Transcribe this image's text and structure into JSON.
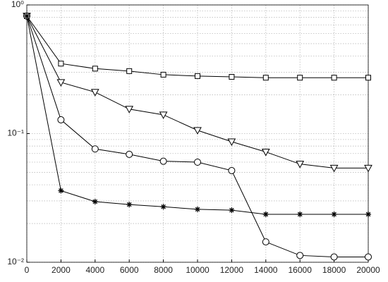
{
  "chart_data": {
    "type": "line",
    "x": [
      0,
      2000,
      4000,
      6000,
      8000,
      10000,
      12000,
      14000,
      16000,
      18000,
      20000
    ],
    "series": [
      {
        "marker": "square",
        "color": "#000000",
        "values": [
          0.82,
          0.35,
          0.32,
          0.306,
          0.287,
          0.28,
          0.276,
          0.272,
          0.272,
          0.272,
          0.272
        ]
      },
      {
        "marker": "triangle",
        "color": "#000000",
        "values": [
          0.82,
          0.25,
          0.21,
          0.155,
          0.14,
          0.106,
          0.0865,
          0.072,
          0.058,
          0.054,
          0.054
        ]
      },
      {
        "marker": "circle",
        "color": "#000000",
        "values": [
          0.82,
          0.128,
          0.076,
          0.069,
          0.061,
          0.06,
          0.0516,
          0.0144,
          0.0113,
          0.011,
          0.011
        ]
      },
      {
        "marker": "star",
        "color": "#000000",
        "values": [
          0.82,
          0.036,
          0.0296,
          0.0281,
          0.027,
          0.0258,
          0.0254,
          0.0236,
          0.0236,
          0.0236,
          0.0236
        ]
      }
    ],
    "xlim": [
      0,
      20000
    ],
    "xticks": [
      0,
      2000,
      4000,
      6000,
      8000,
      10000,
      12000,
      14000,
      16000,
      18000,
      20000
    ],
    "ylim": [
      0.01,
      1
    ],
    "ylog": true,
    "yticks": [
      {
        "value": 0.01,
        "label": "10⁻²"
      },
      {
        "value": 0.1,
        "label": "10⁻¹"
      },
      {
        "value": 1,
        "label": "10⁰"
      }
    ],
    "grid": true
  }
}
